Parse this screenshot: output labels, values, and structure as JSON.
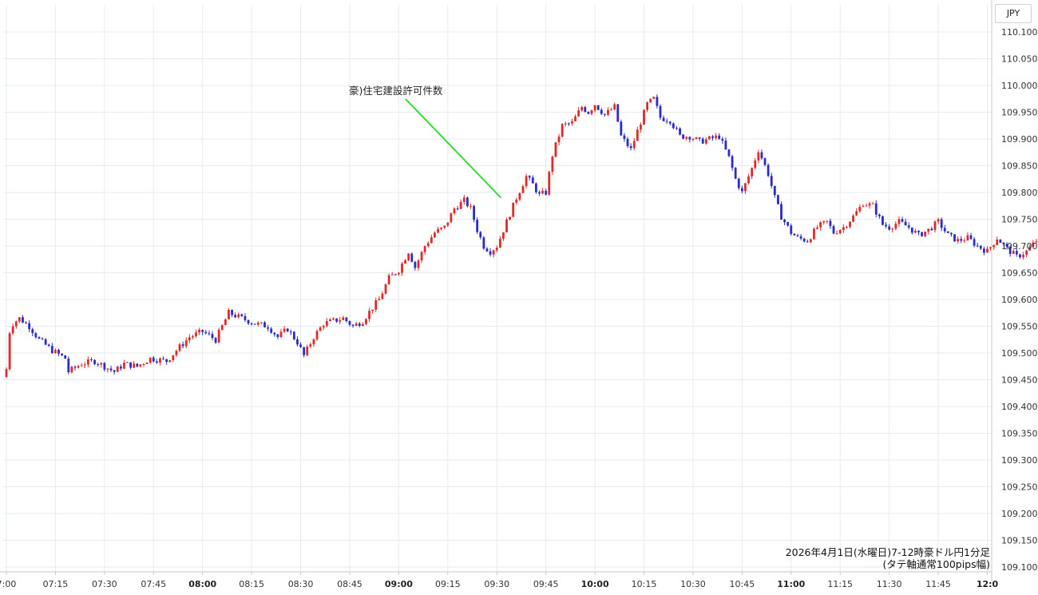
{
  "unit_label": "JPY",
  "caption": {
    "line1": "2026年4月1日(水曜日)7-12時豪ドル円1分足",
    "line2": "(タテ軸通常100pips幅)"
  },
  "colors": {
    "up": "#e02a2a",
    "down": "#2b2bc8",
    "grid": "#e6ecf2",
    "annotation_line": "#33dd33"
  },
  "chart_data": {
    "type": "candlestick",
    "ylim": [
      109.1,
      110.1
    ],
    "y_ticks": [
      "110.100",
      "110.050",
      "110.000",
      "109.950",
      "109.900",
      "109.850",
      "109.800",
      "109.750",
      "109.700",
      "109.650",
      "109.600",
      "109.550",
      "109.500",
      "109.450",
      "109.400",
      "109.350",
      "109.300",
      "109.250",
      "109.200",
      "109.150",
      "109.100"
    ],
    "x_ticks": [
      {
        "time": "7:00",
        "bold": false
      },
      {
        "time": "07:15",
        "bold": false
      },
      {
        "time": "07:30",
        "bold": false
      },
      {
        "time": "07:45",
        "bold": false
      },
      {
        "time": "08:00",
        "bold": true
      },
      {
        "time": "08:15",
        "bold": false
      },
      {
        "time": "08:30",
        "bold": false
      },
      {
        "time": "08:45",
        "bold": false
      },
      {
        "time": "09:00",
        "bold": true
      },
      {
        "time": "09:15",
        "bold": false
      },
      {
        "time": "09:30",
        "bold": false
      },
      {
        "time": "09:45",
        "bold": false
      },
      {
        "time": "10:00",
        "bold": true
      },
      {
        "time": "10:15",
        "bold": false
      },
      {
        "time": "10:30",
        "bold": false
      },
      {
        "time": "10:45",
        "bold": false
      },
      {
        "time": "11:00",
        "bold": true
      },
      {
        "time": "11:15",
        "bold": false
      },
      {
        "time": "11:30",
        "bold": false
      },
      {
        "time": "11:45",
        "bold": false
      },
      {
        "time": "12:0",
        "bold": true
      }
    ],
    "x_range_minutes": [
      0,
      300
    ],
    "anchors": [
      [
        0,
        109.47
      ],
      [
        1,
        109.54
      ],
      [
        2,
        109.555
      ],
      [
        4,
        109.565
      ],
      [
        7,
        109.55
      ],
      [
        10,
        109.525
      ],
      [
        14,
        109.505
      ],
      [
        18,
        109.49
      ],
      [
        19,
        109.465
      ],
      [
        23,
        109.48
      ],
      [
        27,
        109.485
      ],
      [
        30,
        109.475
      ],
      [
        33,
        109.465
      ],
      [
        36,
        109.48
      ],
      [
        40,
        109.475
      ],
      [
        44,
        109.49
      ],
      [
        49,
        109.485
      ],
      [
        52,
        109.505
      ],
      [
        56,
        109.53
      ],
      [
        60,
        109.54
      ],
      [
        64,
        109.525
      ],
      [
        68,
        109.575
      ],
      [
        72,
        109.565
      ],
      [
        76,
        109.555
      ],
      [
        80,
        109.55
      ],
      [
        83,
        109.53
      ],
      [
        86,
        109.545
      ],
      [
        89,
        109.52
      ],
      [
        91,
        109.495
      ],
      [
        94,
        109.53
      ],
      [
        97,
        109.555
      ],
      [
        100,
        109.56
      ],
      [
        103,
        109.565
      ],
      [
        106,
        109.55
      ],
      [
        109,
        109.56
      ],
      [
        112,
        109.585
      ],
      [
        114,
        109.6
      ],
      [
        117,
        109.64
      ],
      [
        120,
        109.655
      ],
      [
        123,
        109.69
      ],
      [
        125,
        109.66
      ],
      [
        128,
        109.7
      ],
      [
        131,
        109.725
      ],
      [
        134,
        109.735
      ],
      [
        137,
        109.77
      ],
      [
        140,
        109.785
      ],
      [
        142,
        109.77
      ],
      [
        144,
        109.73
      ],
      [
        146,
        109.7
      ],
      [
        148,
        109.69
      ],
      [
        150,
        109.7
      ],
      [
        153,
        109.745
      ],
      [
        156,
        109.79
      ],
      [
        159,
        109.83
      ],
      [
        161,
        109.815
      ],
      [
        163,
        109.795
      ],
      [
        165,
        109.8
      ],
      [
        167,
        109.87
      ],
      [
        170,
        109.925
      ],
      [
        173,
        109.93
      ],
      [
        176,
        109.96
      ],
      [
        178,
        109.95
      ],
      [
        180,
        109.965
      ],
      [
        183,
        109.945
      ],
      [
        186,
        109.96
      ],
      [
        188,
        109.905
      ],
      [
        191,
        109.88
      ],
      [
        193,
        109.915
      ],
      [
        196,
        109.965
      ],
      [
        198,
        109.975
      ],
      [
        200,
        109.94
      ],
      [
        203,
        109.935
      ],
      [
        206,
        109.905
      ],
      [
        209,
        109.905
      ],
      [
        212,
        109.895
      ],
      [
        215,
        109.9
      ],
      [
        218,
        109.905
      ],
      [
        221,
        109.865
      ],
      [
        223,
        109.825
      ],
      [
        225,
        109.8
      ],
      [
        228,
        109.845
      ],
      [
        230,
        109.88
      ],
      [
        233,
        109.835
      ],
      [
        235,
        109.79
      ],
      [
        237,
        109.755
      ],
      [
        240,
        109.725
      ],
      [
        242,
        109.715
      ],
      [
        245,
        109.71
      ],
      [
        248,
        109.735
      ],
      [
        251,
        109.745
      ],
      [
        253,
        109.725
      ],
      [
        256,
        109.735
      ],
      [
        259,
        109.755
      ],
      [
        262,
        109.78
      ],
      [
        265,
        109.775
      ],
      [
        268,
        109.74
      ],
      [
        270,
        109.735
      ],
      [
        273,
        109.745
      ],
      [
        276,
        109.735
      ],
      [
        279,
        109.72
      ],
      [
        282,
        109.73
      ],
      [
        285,
        109.745
      ],
      [
        288,
        109.72
      ],
      [
        291,
        109.71
      ],
      [
        294,
        109.715
      ],
      [
        297,
        109.7
      ],
      [
        300,
        109.69
      ],
      [
        303,
        109.715
      ],
      [
        306,
        109.695
      ],
      [
        309,
        109.68
      ],
      [
        312,
        109.69
      ],
      [
        315,
        109.71
      ],
      [
        318,
        109.7
      ],
      [
        321,
        109.67
      ],
      [
        322,
        109.645
      ]
    ],
    "annotations": [
      {
        "text": "豪)住宅建設許可件数",
        "time_minutes": 152,
        "price": 109.79
      }
    ]
  }
}
